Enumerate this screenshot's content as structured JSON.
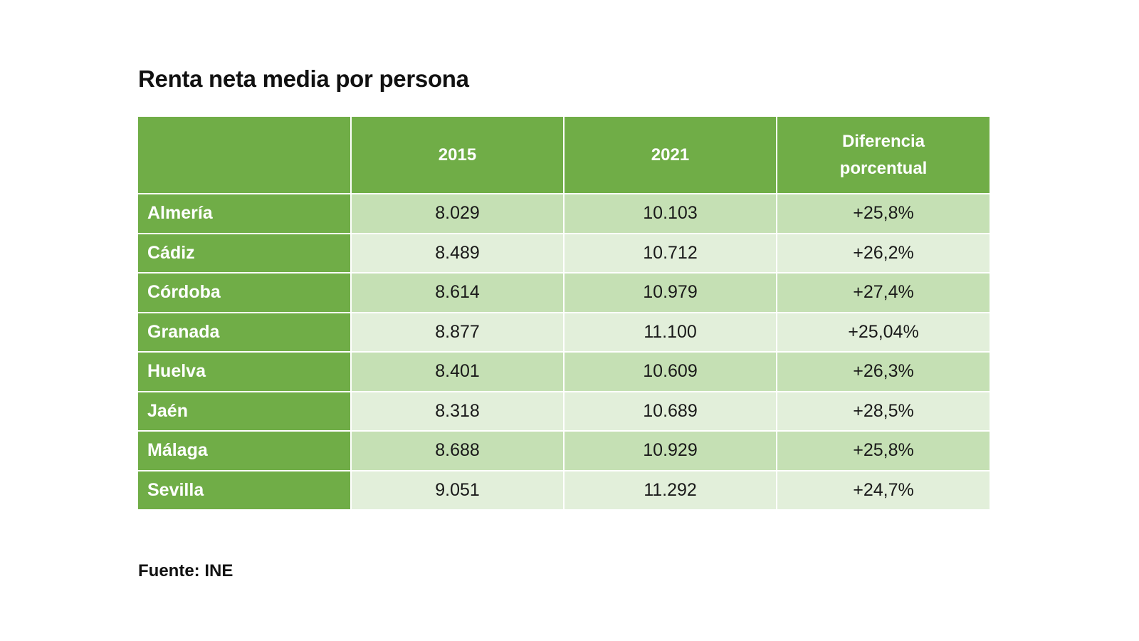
{
  "chart_data": {
    "type": "table",
    "title": "Renta neta media por persona",
    "columns": [
      "",
      "2015",
      "2021",
      "Diferencia porcentual"
    ],
    "rows": [
      {
        "name": "Almería",
        "y2015": "8.029",
        "y2021": "10.103",
        "diff": "+25,8%"
      },
      {
        "name": "Cádiz",
        "y2015": "8.489",
        "y2021": "10.712",
        "diff": "+26,2%"
      },
      {
        "name": "Córdoba",
        "y2015": "8.614",
        "y2021": "10.979",
        "diff": "+27,4%"
      },
      {
        "name": "Granada",
        "y2015": "8.877",
        "y2021": "11.100",
        "diff": "+25,04%"
      },
      {
        "name": "Huelva",
        "y2015": "8.401",
        "y2021": "10.609",
        "diff": "+26,3%"
      },
      {
        "name": "Jaén",
        "y2015": "8.318",
        "y2021": "10.689",
        "diff": "+28,5%"
      },
      {
        "name": "Málaga",
        "y2015": "8.688",
        "y2021": "10.929",
        "diff": "+25,8%"
      },
      {
        "name": "Sevilla",
        "y2015": "9.051",
        "y2021": "11.292",
        "diff": "+24,7%"
      }
    ],
    "source": "Fuente: INE",
    "colors": {
      "header": "#70ad47",
      "row_dark": "#c5e0b4",
      "row_light": "#e2efda"
    }
  }
}
